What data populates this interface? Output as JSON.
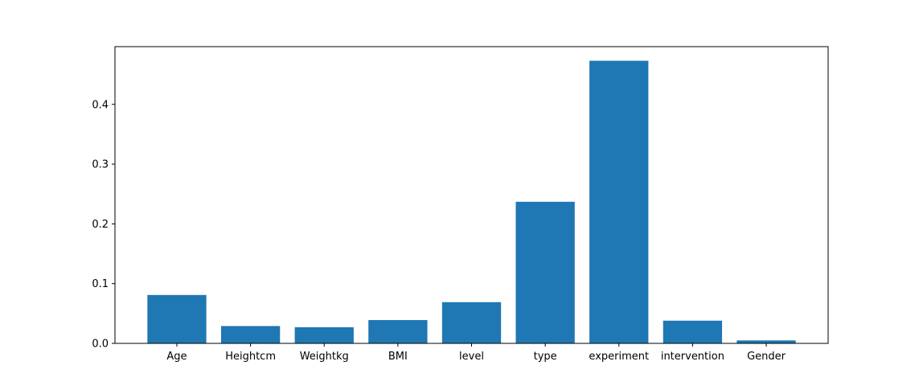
{
  "chart_data": {
    "type": "bar",
    "title": "",
    "xlabel": "",
    "ylabel": "",
    "categories": [
      "Age",
      "Heightcm",
      "Weightkg",
      "BMI",
      "level",
      "type",
      "experiment",
      "intervention",
      "Gender"
    ],
    "values": [
      0.081,
      0.029,
      0.027,
      0.039,
      0.069,
      0.237,
      0.473,
      0.038,
      0.005
    ],
    "ylim": [
      0,
      0.4966
    ],
    "yticks": [
      0.0,
      0.1,
      0.2,
      0.3,
      0.4
    ],
    "ytick_labels": [
      "0.0",
      "0.1",
      "0.2",
      "0.3",
      "0.4"
    ],
    "grid": false,
    "bar_color": "#1f77b4"
  }
}
